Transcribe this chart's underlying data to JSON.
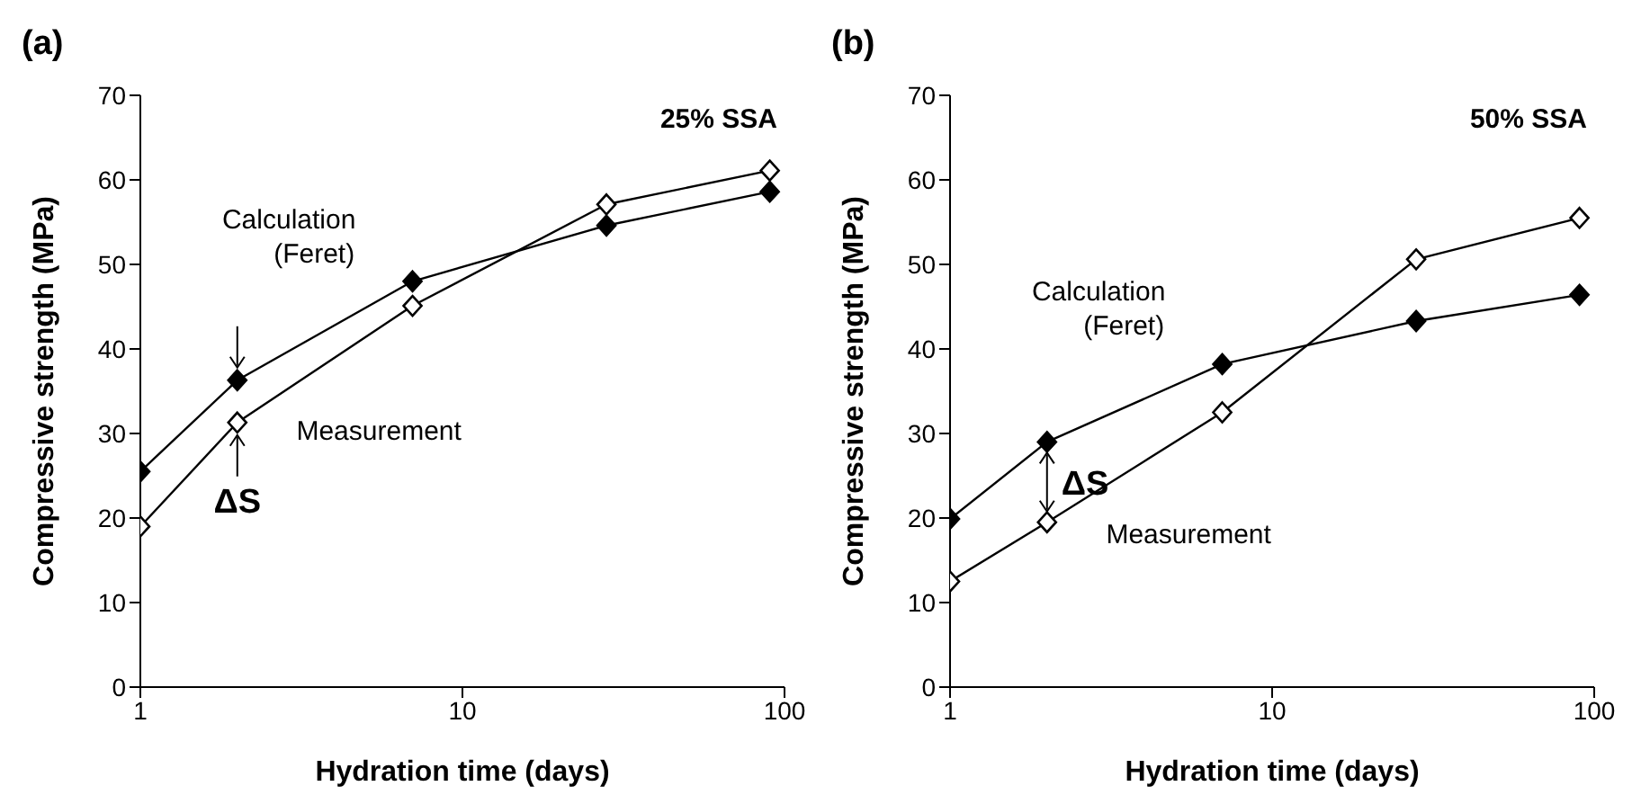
{
  "chart_data": [
    {
      "type": "line",
      "title": "(a)",
      "xlabel": "Hydration time (days)",
      "ylabel": "Compressive strength (MPa)",
      "log": "x",
      "xlim": [
        1,
        100
      ],
      "xticks": [
        1,
        10,
        100
      ],
      "ylim": [
        0,
        70
      ],
      "yticks": [
        0,
        10,
        20,
        30,
        40,
        50,
        60,
        70
      ],
      "grid": false,
      "marker": "diamond",
      "line_style": "solid",
      "series": [
        {
          "name": "Calculation (Feret)",
          "color": "#000000",
          "x": [
            1,
            2,
            7,
            28,
            90
          ],
          "values": [
            25.5,
            36.3,
            48,
            54.6,
            58.6
          ]
        },
        {
          "name": "Measurement",
          "color": "#ffffff",
          "x": [
            1,
            2,
            7,
            28,
            90
          ],
          "values": [
            19,
            31.3,
            45.1,
            57.1,
            61.1
          ]
        }
      ],
      "annotations": [
        "25% SSA",
        "ΔS"
      ]
    },
    {
      "type": "line",
      "title": "(b)",
      "xlabel": "Hydration time (days)",
      "ylabel": "Compressive strength (MPa)",
      "log": "x",
      "xlim": [
        1,
        100
      ],
      "xticks": [
        1,
        10,
        100
      ],
      "ylim": [
        0,
        70
      ],
      "yticks": [
        0,
        10,
        20,
        30,
        40,
        50,
        60,
        70
      ],
      "grid": false,
      "marker": "diamond",
      "line_style": "solid",
      "series": [
        {
          "name": "Calculation (Feret)",
          "color": "#000000",
          "x": [
            1,
            2,
            7,
            28,
            90
          ],
          "values": [
            19.9,
            29,
            38.2,
            43.3,
            46.4
          ]
        },
        {
          "name": "Measurement",
          "color": "#ffffff",
          "x": [
            1,
            2,
            7,
            28,
            90
          ],
          "values": [
            12.5,
            19.5,
            32.5,
            50.6,
            55.5
          ]
        }
      ],
      "annotations": [
        "50% SSA",
        "ΔS"
      ]
    }
  ]
}
